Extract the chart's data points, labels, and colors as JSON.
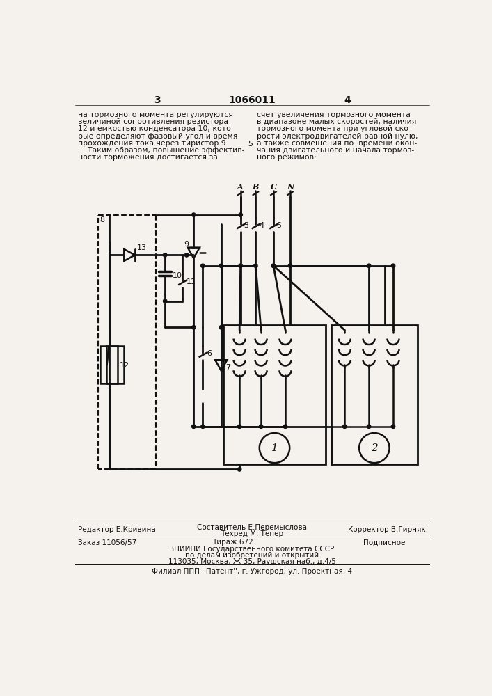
{
  "page_number_left": "3",
  "page_number_center": "1066011",
  "page_number_right": "4",
  "left_column_text": [
    "на тормозного момента регулируются",
    "величиной сопротивления резистора",
    "12 и емкостью конденсатора 10, кото-",
    "рые определяют фазовый угол и время",
    "прохождения тока через тиристор 9.",
    "    Таким образом, повышение эффектив-",
    "ности торможения достигается за"
  ],
  "right_column_text": [
    "счет увеличения тормозного момента",
    "в диапазоне малых скоростей, наличия",
    "тормозного момента при угловой ско-",
    "рости электродвигателей равной нулю,",
    "а также совмещения по  времени окон-",
    "чания двигательного и начала тормоз-",
    "ного режимов:"
  ],
  "col_num": "5",
  "footer_editor": "Редактор Е.Кривина",
  "footer_comp1": "Составитель Е.Перемыслова",
  "footer_comp2": "Техред М. Тепер",
  "footer_corr": "Корректор В.Гирняк",
  "footer_order": "Заказ 11056/57",
  "footer_circ": "Тираж 672",
  "footer_sub": "Подписное",
  "footer_org1": "ВНИИПИ Государственного комитета СССР",
  "footer_org2": "по делам изобретений и открытий",
  "footer_org3": "113035, Москва, Ж-35, Раушская наб., д.4/5",
  "footer_branch": "Филиал ППП ''Патент'', г. Ужгород, ул. Проектная, 4",
  "bg_color": "#f5f2ed",
  "line_color": "#111111",
  "text_color": "#111111"
}
